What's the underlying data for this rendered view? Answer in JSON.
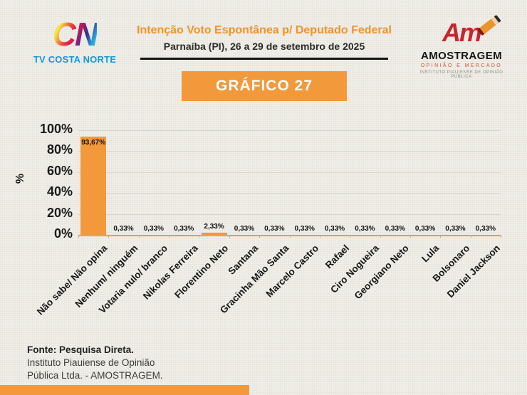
{
  "header": {
    "station_logo": {
      "monogram": "CN",
      "name": "TV COSTA NORTE"
    },
    "title": "Intenção Voto Espontânea p/ Deputado Federal",
    "subtitle": "Parnaíba (PI), 26 a 29 de setembro de 2025"
  },
  "institute_logo": {
    "monogram": "Am",
    "name": "AMOSTRAGEM",
    "tagline": "OPINIÃO E MERCADO",
    "subtext": "INSTITUTO PIAUIENSE DE OPINIÃO PÚBLICA"
  },
  "banner": {
    "label": "GRÁFICO 27"
  },
  "chart_data": {
    "type": "bar",
    "title": "GRÁFICO 27",
    "xlabel": "",
    "ylabel": "%",
    "ylim": [
      0,
      100
    ],
    "ytick_values": [
      0,
      20,
      40,
      60,
      80,
      100
    ],
    "ytick_labels": [
      "0%",
      "20%",
      "40%",
      "60%",
      "80%",
      "100%"
    ],
    "grid": true,
    "legend_position": "none",
    "bar_color": "#F2993B",
    "categories": [
      "Não sabe/ Não opina",
      "Nenhum/ ninguém",
      "Votaria nulo/ branco",
      "Nikolas Ferreira",
      "Florentino Neto",
      "Santana",
      "Gracinha Mão Santa",
      "Marcelo Castro",
      "Rafael",
      "Ciro Nogueira",
      "Georgiano Neto",
      "Lula",
      "Bolsonaro",
      "Daniel Jackson"
    ],
    "values": [
      93.67,
      0.33,
      0.33,
      0.33,
      2.33,
      0.33,
      0.33,
      0.33,
      0.33,
      0.33,
      0.33,
      0.33,
      0.33,
      0.33
    ],
    "value_labels": [
      "93,67%",
      "0,33%",
      "0,33%",
      "0,33%",
      "2,33%",
      "0,33%",
      "0,33%",
      "0,33%",
      "0,33%",
      "0,33%",
      "0,33%",
      "0,33%",
      "0,33%",
      "0,33%"
    ]
  },
  "footer": {
    "source_title": "Fonte: Pesquisa Direta.",
    "source_lines": [
      "Instituto Piauiense de Opinião",
      "Pública Ltda. - AMOSTRAGEM."
    ]
  },
  "colors": {
    "accent_orange": "#F2993B",
    "title_orange": "#F2932C",
    "logo_blue": "#1798D5",
    "logo_red": "#C9252C",
    "axis_line_tan": "#DCA76C",
    "gridline_gray": "#D8D5CC",
    "background": "#F1EFE9"
  }
}
